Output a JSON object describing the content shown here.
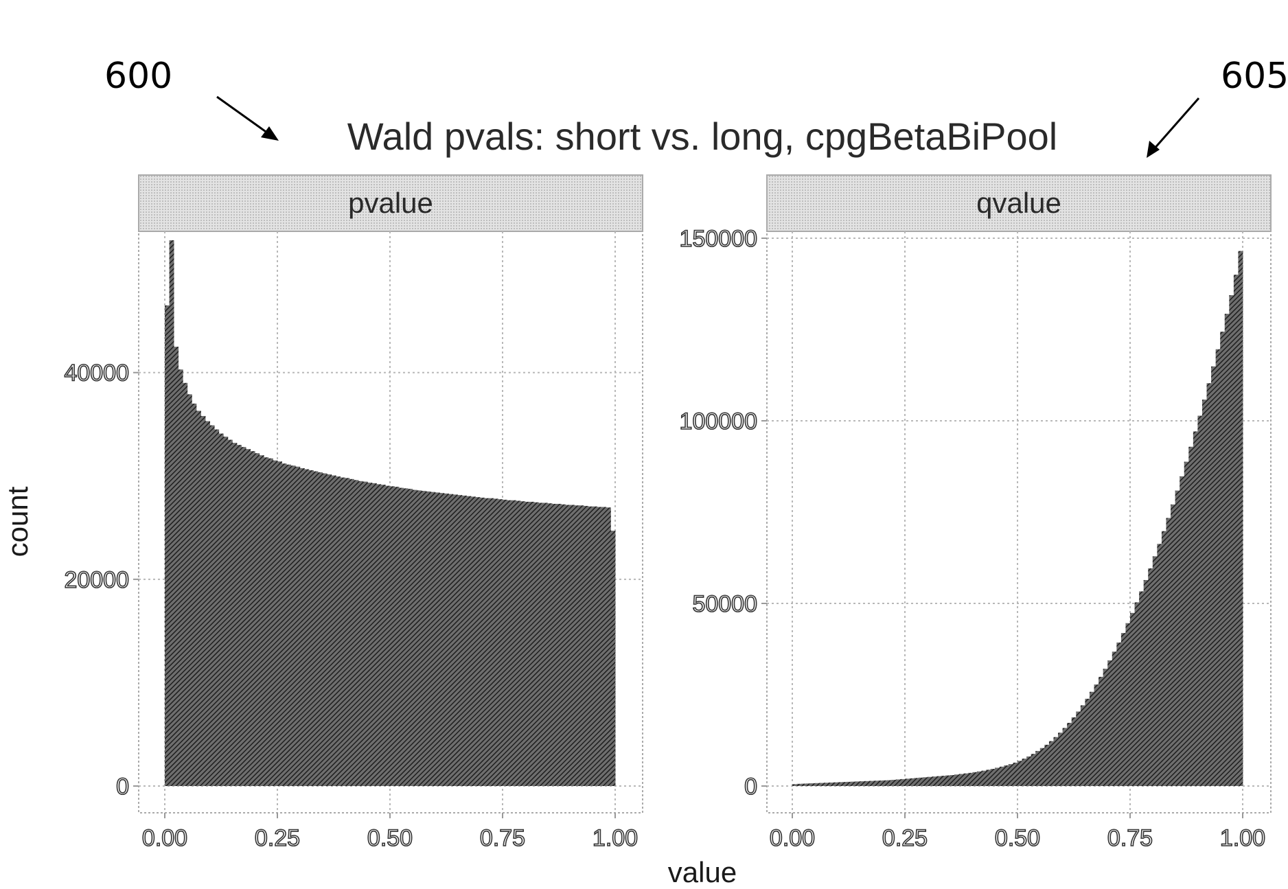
{
  "annotations": {
    "left_ref": "600",
    "right_ref": "605"
  },
  "chart_data": {
    "type": "bar",
    "title": "Wald pvals: short vs. long, cpgBetaBiPool",
    "xlabel": "value",
    "ylabel": "count",
    "grid": true,
    "panels": [
      {
        "strip": "pvalue",
        "xlim": [
          0,
          1
        ],
        "ylim": [
          0,
          53000
        ],
        "x_ticks": [
          "0.00",
          "0.25",
          "0.50",
          "0.75",
          "1.00"
        ],
        "x_tick_values": [
          0,
          0.25,
          0.5,
          0.75,
          1
        ],
        "y_ticks": [
          "0",
          "20000",
          "40000"
        ],
        "y_tick_values": [
          0,
          20000,
          40000
        ],
        "bin_width": 0.01,
        "values": [
          46500,
          52800,
          42500,
          40300,
          39000,
          37900,
          37000,
          36300,
          35800,
          35300,
          34900,
          34500,
          34100,
          33800,
          33500,
          33200,
          33000,
          32800,
          32600,
          32400,
          32200,
          32000,
          31800,
          31700,
          31500,
          31400,
          31200,
          31100,
          31000,
          30900,
          30750,
          30650,
          30550,
          30450,
          30350,
          30250,
          30150,
          30050,
          29950,
          29850,
          29800,
          29700,
          29600,
          29500,
          29450,
          29350,
          29300,
          29200,
          29150,
          29050,
          29000,
          28950,
          28850,
          28800,
          28750,
          28650,
          28600,
          28550,
          28500,
          28450,
          28400,
          28350,
          28300,
          28250,
          28200,
          28150,
          28100,
          28050,
          28000,
          27950,
          27900,
          27850,
          27850,
          27800,
          27750,
          27700,
          27650,
          27650,
          27600,
          27550,
          27500,
          27500,
          27450,
          27400,
          27400,
          27350,
          27300,
          27300,
          27250,
          27200,
          27200,
          27150,
          27150,
          27100,
          27050,
          27050,
          27000,
          27000,
          26950,
          24700
        ]
      },
      {
        "strip": "qvalue",
        "xlim": [
          0,
          1
        ],
        "ylim": [
          0,
          150000
        ],
        "x_ticks": [
          "0.00",
          "0.25",
          "0.50",
          "0.75",
          "1.00"
        ],
        "x_tick_values": [
          0,
          0.25,
          0.5,
          0.75,
          1
        ],
        "y_ticks": [
          "0",
          "50000",
          "100000",
          "150000"
        ],
        "y_tick_values": [
          0,
          50000,
          100000,
          150000
        ],
        "bin_width": 0.01,
        "values": [
          500,
          600,
          650,
          700,
          750,
          800,
          850,
          900,
          950,
          1000,
          1050,
          1100,
          1150,
          1200,
          1250,
          1300,
          1350,
          1400,
          1450,
          1500,
          1550,
          1600,
          1700,
          1800,
          1900,
          2000,
          2100,
          2200,
          2300,
          2400,
          2500,
          2600,
          2700,
          2800,
          2900,
          3000,
          3150,
          3300,
          3450,
          3600,
          3800,
          4000,
          4200,
          4450,
          4700,
          5000,
          5300,
          5650,
          6000,
          6400,
          6900,
          7500,
          8100,
          8800,
          9600,
          10400,
          11300,
          12300,
          13400,
          14600,
          15900,
          17300,
          18800,
          20400,
          22100,
          23900,
          25800,
          27800,
          29900,
          32100,
          34400,
          36800,
          39300,
          41900,
          44600,
          47400,
          50300,
          53300,
          56400,
          59600,
          62900,
          66300,
          69800,
          73400,
          77100,
          80900,
          84800,
          88800,
          92900,
          97100,
          101400,
          105800,
          110300,
          114900,
          119600,
          124400,
          129300,
          134400,
          140000,
          146500
        ]
      }
    ]
  }
}
